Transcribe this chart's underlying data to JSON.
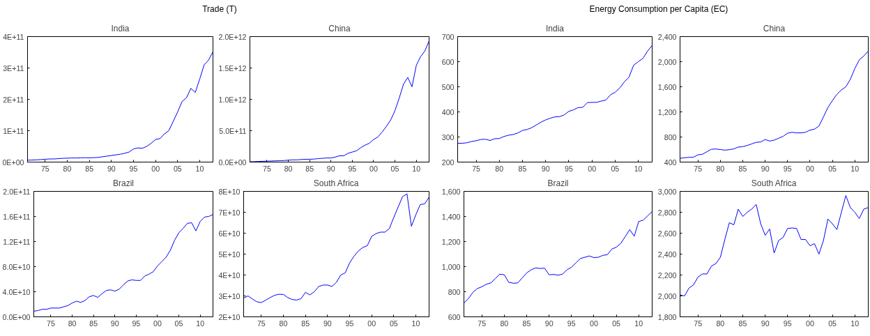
{
  "chart_data": [
    {
      "type": "line",
      "annotations": [
        "Trade (T)"
      ],
      "title": "India",
      "x": [
        1971,
        1972,
        1973,
        1974,
        1975,
        1976,
        1977,
        1978,
        1979,
        1980,
        1981,
        1982,
        1983,
        1984,
        1985,
        1986,
        1987,
        1988,
        1989,
        1990,
        1991,
        1992,
        1993,
        1994,
        1995,
        1996,
        1997,
        1998,
        1999,
        2000,
        2001,
        2002,
        2003,
        2004,
        2005,
        2006,
        2007,
        2008,
        2009,
        2010,
        2011,
        2012,
        2013
      ],
      "series": [
        {
          "color": "#0000ff",
          "values": [
            6000000000,
            6500000000,
            7000000000,
            8000000000,
            9000000000,
            10000000000,
            10000000000,
            11000000000,
            12000000000,
            12500000000,
            13000000000,
            13000000000,
            13500000000,
            14000000000,
            13500000000,
            14000000000,
            15000000000,
            17000000000,
            19000000000,
            21000000000,
            23000000000,
            25000000000,
            28000000000,
            32000000000,
            42000000000,
            45000000000,
            44000000000,
            50000000000,
            60000000000,
            72000000000,
            75000000000,
            90000000000,
            100000000000,
            130000000000,
            160000000000,
            193000000000,
            205000000000,
            235000000000,
            222000000000,
            265000000000,
            310000000000,
            325000000000,
            352000000000
          ]
        }
      ],
      "xlim": [
        1971,
        2013
      ],
      "xticks": [
        {
          "value": 1975,
          "label": "75"
        },
        {
          "value": 1980,
          "label": "80"
        },
        {
          "value": 1985,
          "label": "85"
        },
        {
          "value": 1990,
          "label": "90"
        },
        {
          "value": 1995,
          "label": "95"
        },
        {
          "value": 2000,
          "label": "00"
        },
        {
          "value": 2005,
          "label": "05"
        },
        {
          "value": 2010,
          "label": "10"
        }
      ],
      "ylim": [
        0,
        400000000000
      ],
      "yticks": [
        {
          "value": 0,
          "label": "0E+00"
        },
        {
          "value": 100000000000,
          "label": "1E+11"
        },
        {
          "value": 200000000000,
          "label": "2E+11"
        },
        {
          "value": 300000000000,
          "label": "3E+11"
        },
        {
          "value": 400000000000,
          "label": "4E+11"
        }
      ],
      "grid": false
    },
    {
      "type": "line",
      "title": "China",
      "x": [
        1971,
        1972,
        1973,
        1974,
        1975,
        1976,
        1977,
        1978,
        1979,
        1980,
        1981,
        1982,
        1983,
        1984,
        1985,
        1986,
        1987,
        1988,
        1989,
        1990,
        1991,
        1992,
        1993,
        1994,
        1995,
        1996,
        1997,
        1998,
        1999,
        2000,
        2001,
        2002,
        2003,
        2004,
        2005,
        2006,
        2007,
        2008,
        2009,
        2010,
        2011,
        2012,
        2013
      ],
      "series": [
        {
          "color": "#0000ff",
          "values": [
            5000000000,
            7000000000,
            10000000000,
            13000000000,
            15000000000,
            17000000000,
            20000000000,
            22000000000,
            25000000000,
            30000000000,
            35000000000,
            35000000000,
            40000000000,
            45000000000,
            45000000000,
            48000000000,
            55000000000,
            60000000000,
            65000000000,
            65000000000,
            80000000000,
            100000000000,
            100000000000,
            140000000000,
            160000000000,
            180000000000,
            230000000000,
            270000000000,
            300000000000,
            360000000000,
            400000000000,
            480000000000,
            570000000000,
            670000000000,
            820000000000,
            1020000000000,
            1240000000000,
            1350000000000,
            1200000000000,
            1540000000000,
            1680000000000,
            1770000000000,
            1930000000000
          ]
        }
      ],
      "xlim": [
        1971,
        2013
      ],
      "xticks": [
        {
          "value": 1975,
          "label": "75"
        },
        {
          "value": 1980,
          "label": "80"
        },
        {
          "value": 1985,
          "label": "85"
        },
        {
          "value": 1990,
          "label": "90"
        },
        {
          "value": 1995,
          "label": "95"
        },
        {
          "value": 2000,
          "label": "00"
        },
        {
          "value": 2005,
          "label": "05"
        },
        {
          "value": 2010,
          "label": "10"
        }
      ],
      "ylim": [
        0,
        2000000000000
      ],
      "yticks": [
        {
          "value": 0,
          "label": "0.0E+00"
        },
        {
          "value": 500000000000,
          "label": "5.0E+11"
        },
        {
          "value": 1000000000000,
          "label": "1.0E+12"
        },
        {
          "value": 1500000000000,
          "label": "1.5E+12"
        },
        {
          "value": 2000000000000,
          "label": "2.0E+12"
        }
      ],
      "grid": false
    },
    {
      "type": "line",
      "title": "Brazil",
      "x": [
        1971,
        1972,
        1973,
        1974,
        1975,
        1976,
        1977,
        1978,
        1979,
        1980,
        1981,
        1982,
        1983,
        1984,
        1985,
        1986,
        1987,
        1988,
        1989,
        1990,
        1991,
        1992,
        1993,
        1994,
        1995,
        1996,
        1997,
        1998,
        1999,
        2000,
        2001,
        2002,
        2003,
        2004,
        2005,
        2006,
        2007,
        2008,
        2009,
        2010,
        2011,
        2012,
        2013
      ],
      "series": [
        {
          "color": "#0000ff",
          "values": [
            9000000000,
            10000000000,
            12000000000,
            12000000000,
            14000000000,
            14000000000,
            14000000000,
            16000000000,
            18000000000,
            22000000000,
            25000000000,
            23000000000,
            26000000000,
            32000000000,
            34000000000,
            31000000000,
            37000000000,
            42000000000,
            43000000000,
            41000000000,
            44000000000,
            51000000000,
            57000000000,
            59000000000,
            58000000000,
            58000000000,
            65000000000,
            68000000000,
            72000000000,
            81000000000,
            88000000000,
            95000000000,
            106000000000,
            122000000000,
            134000000000,
            141000000000,
            149000000000,
            150000000000,
            137000000000,
            152000000000,
            159000000000,
            160000000000,
            163000000000
          ]
        }
      ],
      "xlim": [
        1971,
        2013
      ],
      "xticks": [
        {
          "value": 1975,
          "label": "75"
        },
        {
          "value": 1980,
          "label": "80"
        },
        {
          "value": 1985,
          "label": "85"
        },
        {
          "value": 1990,
          "label": "90"
        },
        {
          "value": 1995,
          "label": "95"
        },
        {
          "value": 2000,
          "label": "00"
        },
        {
          "value": 2005,
          "label": "05"
        },
        {
          "value": 2010,
          "label": "10"
        }
      ],
      "ylim": [
        0,
        200000000000
      ],
      "yticks": [
        {
          "value": 0,
          "label": "0.0E+00"
        },
        {
          "value": 40000000000,
          "label": "4.0E+10"
        },
        {
          "value": 80000000000,
          "label": "8.0E+10"
        },
        {
          "value": 120000000000,
          "label": "1.2E+11"
        },
        {
          "value": 160000000000,
          "label": "1.6E+11"
        },
        {
          "value": 200000000000,
          "label": "2.0E+11"
        }
      ],
      "grid": false
    },
    {
      "type": "line",
      "title": "South Africa",
      "x": [
        1971,
        1972,
        1973,
        1974,
        1975,
        1976,
        1977,
        1978,
        1979,
        1980,
        1981,
        1982,
        1983,
        1984,
        1985,
        1986,
        1987,
        1988,
        1989,
        1990,
        1991,
        1992,
        1993,
        1994,
        1995,
        1996,
        1997,
        1998,
        1999,
        2000,
        2001,
        2002,
        2003,
        2004,
        2005,
        2006,
        2007,
        2008,
        2009,
        2010,
        2011,
        2012,
        2013
      ],
      "series": [
        {
          "color": "#0000ff",
          "values": [
            29000000000,
            30000000000,
            28500000000,
            27200000000,
            26800000000,
            28000000000,
            29200000000,
            30300000000,
            30800000000,
            30700000000,
            29200000000,
            28300000000,
            28000000000,
            28700000000,
            31700000000,
            30500000000,
            32000000000,
            34500000000,
            35200000000,
            35200000000,
            34500000000,
            36500000000,
            40000000000,
            41000000000,
            45800000000,
            49000000000,
            51500000000,
            53200000000,
            54000000000,
            58500000000,
            59800000000,
            60500000000,
            60500000000,
            62200000000,
            67500000000,
            72500000000,
            77500000000,
            78800000000,
            63300000000,
            68800000000,
            73700000000,
            74000000000,
            77200000000
          ]
        }
      ],
      "xlim": [
        1971,
        2013
      ],
      "xticks": [
        {
          "value": 1975,
          "label": "75"
        },
        {
          "value": 1980,
          "label": "80"
        },
        {
          "value": 1985,
          "label": "85"
        },
        {
          "value": 1990,
          "label": "90"
        },
        {
          "value": 1995,
          "label": "95"
        },
        {
          "value": 2000,
          "label": "00"
        },
        {
          "value": 2005,
          "label": "05"
        },
        {
          "value": 2010,
          "label": "10"
        }
      ],
      "ylim": [
        20000000000,
        80000000000
      ],
      "yticks": [
        {
          "value": 20000000000,
          "label": "2E+10"
        },
        {
          "value": 30000000000,
          "label": "3E+10"
        },
        {
          "value": 40000000000,
          "label": "4E+10"
        },
        {
          "value": 50000000000,
          "label": "5E+10"
        },
        {
          "value": 60000000000,
          "label": "6E+10"
        },
        {
          "value": 70000000000,
          "label": "7E+10"
        },
        {
          "value": 80000000000,
          "label": "8E+10"
        }
      ],
      "grid": false
    },
    {
      "type": "line",
      "annotations": [
        "Energy Consumption per Capita (EC)"
      ],
      "title": "India",
      "x": [
        1971,
        1972,
        1973,
        1974,
        1975,
        1976,
        1977,
        1978,
        1979,
        1980,
        1981,
        1982,
        1983,
        1984,
        1985,
        1986,
        1987,
        1988,
        1989,
        1990,
        1991,
        1992,
        1993,
        1994,
        1995,
        1996,
        1997,
        1998,
        1999,
        2000,
        2001,
        2002,
        2003,
        2004,
        2005,
        2006,
        2007,
        2008,
        2009,
        2010,
        2011,
        2012,
        2013
      ],
      "series": [
        {
          "color": "#0000ff",
          "values": [
            275,
            275,
            277,
            282,
            285,
            290,
            291,
            286,
            293,
            294,
            302,
            307,
            310,
            316,
            326,
            330,
            337,
            348,
            359,
            368,
            375,
            380,
            381,
            388,
            402,
            408,
            417,
            418,
            437,
            438,
            438,
            443,
            447,
            468,
            478,
            495,
            520,
            538,
            586,
            600,
            613,
            642,
            665
          ]
        }
      ],
      "xlim": [
        1971,
        2013
      ],
      "xticks": [
        {
          "value": 1975,
          "label": "75"
        },
        {
          "value": 1980,
          "label": "80"
        },
        {
          "value": 1985,
          "label": "85"
        },
        {
          "value": 1990,
          "label": "90"
        },
        {
          "value": 1995,
          "label": "95"
        },
        {
          "value": 2000,
          "label": "00"
        },
        {
          "value": 2005,
          "label": "05"
        },
        {
          "value": 2010,
          "label": "10"
        }
      ],
      "ylim": [
        200,
        700
      ],
      "yticks": [
        200,
        300,
        400,
        500,
        600,
        700
      ],
      "grid": false
    },
    {
      "type": "line",
      "title": "China",
      "x": [
        1971,
        1972,
        1973,
        1974,
        1975,
        1976,
        1977,
        1978,
        1979,
        1980,
        1981,
        1982,
        1983,
        1984,
        1985,
        1986,
        1987,
        1988,
        1989,
        1990,
        1991,
        1992,
        1993,
        1994,
        1995,
        1996,
        1997,
        1998,
        1999,
        2000,
        2001,
        2002,
        2003,
        2004,
        2005,
        2006,
        2007,
        2008,
        2009,
        2010,
        2011,
        2012,
        2013
      ],
      "series": [
        {
          "color": "#0000ff",
          "values": [
            460,
            470,
            475,
            478,
            515,
            525,
            565,
            605,
            608,
            600,
            590,
            598,
            610,
            640,
            645,
            665,
            690,
            715,
            720,
            760,
            735,
            750,
            780,
            810,
            860,
            875,
            865,
            865,
            875,
            910,
            925,
            975,
            1120,
            1270,
            1380,
            1480,
            1550,
            1600,
            1720,
            1890,
            2030,
            2090,
            2170
          ]
        }
      ],
      "xlim": [
        1971,
        2013
      ],
      "xticks": [
        {
          "value": 1975,
          "label": "75"
        },
        {
          "value": 1980,
          "label": "80"
        },
        {
          "value": 1985,
          "label": "85"
        },
        {
          "value": 1990,
          "label": "90"
        },
        {
          "value": 1995,
          "label": "95"
        },
        {
          "value": 2000,
          "label": "00"
        },
        {
          "value": 2005,
          "label": "05"
        },
        {
          "value": 2010,
          "label": "10"
        }
      ],
      "ylim": [
        400,
        2400
      ],
      "yticks": [
        {
          "value": 400,
          "label": "400"
        },
        {
          "value": 800,
          "label": "800"
        },
        {
          "value": 1200,
          "label": "1,200"
        },
        {
          "value": 1600,
          "label": "1,600"
        },
        {
          "value": 2000,
          "label": "2,000"
        },
        {
          "value": 2400,
          "label": "2,400"
        }
      ],
      "grid": false
    },
    {
      "type": "line",
      "title": "Brazil",
      "x": [
        1971,
        1972,
        1973,
        1974,
        1975,
        1976,
        1977,
        1978,
        1979,
        1980,
        1981,
        1982,
        1983,
        1984,
        1985,
        1986,
        1987,
        1988,
        1989,
        1990,
        1991,
        1992,
        1993,
        1994,
        1995,
        1996,
        1997,
        1998,
        1999,
        2000,
        2001,
        2002,
        2003,
        2004,
        2005,
        2006,
        2007,
        2008,
        2009,
        2010,
        2011,
        2012,
        2013
      ],
      "series": [
        {
          "color": "#0000ff",
          "values": [
            710,
            745,
            795,
            825,
            840,
            860,
            870,
            905,
            940,
            935,
            875,
            868,
            870,
            910,
            950,
            975,
            990,
            985,
            988,
            935,
            938,
            932,
            940,
            975,
            995,
            1030,
            1065,
            1075,
            1085,
            1072,
            1075,
            1090,
            1095,
            1140,
            1155,
            1185,
            1240,
            1295,
            1242,
            1360,
            1370,
            1405,
            1440
          ]
        }
      ],
      "xlim": [
        1971,
        2013
      ],
      "xticks": [
        {
          "value": 1975,
          "label": "75"
        },
        {
          "value": 1980,
          "label": "80"
        },
        {
          "value": 1985,
          "label": "85"
        },
        {
          "value": 1990,
          "label": "90"
        },
        {
          "value": 1995,
          "label": "95"
        },
        {
          "value": 2000,
          "label": "00"
        },
        {
          "value": 2005,
          "label": "05"
        },
        {
          "value": 2010,
          "label": "10"
        }
      ],
      "ylim": [
        600,
        1600
      ],
      "yticks": [
        {
          "value": 600,
          "label": "600"
        },
        {
          "value": 800,
          "label": "800"
        },
        {
          "value": 1000,
          "label": "1,000"
        },
        {
          "value": 1200,
          "label": "1,200"
        },
        {
          "value": 1400,
          "label": "1,400"
        },
        {
          "value": 1600,
          "label": "1,600"
        }
      ],
      "grid": false
    },
    {
      "type": "line",
      "title": "South Africa",
      "x": [
        1971,
        1972,
        1973,
        1974,
        1975,
        1976,
        1977,
        1978,
        1979,
        1980,
        1981,
        1982,
        1983,
        1984,
        1985,
        1986,
        1987,
        1988,
        1989,
        1990,
        1991,
        1992,
        1993,
        1994,
        1995,
        1996,
        1997,
        1998,
        1999,
        2000,
        2001,
        2002,
        2003,
        2004,
        2005,
        2006,
        2007,
        2008,
        2009,
        2010,
        2011,
        2012,
        2013
      ],
      "series": [
        {
          "color": "#0000ff",
          "values": [
            2010,
            2000,
            2075,
            2105,
            2180,
            2210,
            2210,
            2285,
            2310,
            2370,
            2540,
            2700,
            2680,
            2830,
            2760,
            2800,
            2830,
            2875,
            2690,
            2580,
            2640,
            2410,
            2530,
            2560,
            2645,
            2650,
            2645,
            2540,
            2540,
            2480,
            2500,
            2400,
            2530,
            2735,
            2690,
            2635,
            2800,
            2960,
            2845,
            2800,
            2740,
            2830,
            2845
          ]
        }
      ],
      "xlim": [
        1971,
        2013
      ],
      "xticks": [
        {
          "value": 1975,
          "label": "75"
        },
        {
          "value": 1980,
          "label": "80"
        },
        {
          "value": 1985,
          "label": "85"
        },
        {
          "value": 1990,
          "label": "90"
        },
        {
          "value": 1995,
          "label": "95"
        },
        {
          "value": 2000,
          "label": "00"
        },
        {
          "value": 2005,
          "label": "05"
        },
        {
          "value": 2010,
          "label": "10"
        }
      ],
      "ylim": [
        1800,
        3000
      ],
      "yticks": [
        {
          "value": 1800,
          "label": "1,800"
        },
        {
          "value": 2000,
          "label": "2,000"
        },
        {
          "value": 2200,
          "label": "2,200"
        },
        {
          "value": 2400,
          "label": "2,400"
        },
        {
          "value": 2600,
          "label": "2,600"
        },
        {
          "value": 2800,
          "label": "2,800"
        },
        {
          "value": 3000,
          "label": "3,000"
        }
      ],
      "grid": false
    }
  ]
}
